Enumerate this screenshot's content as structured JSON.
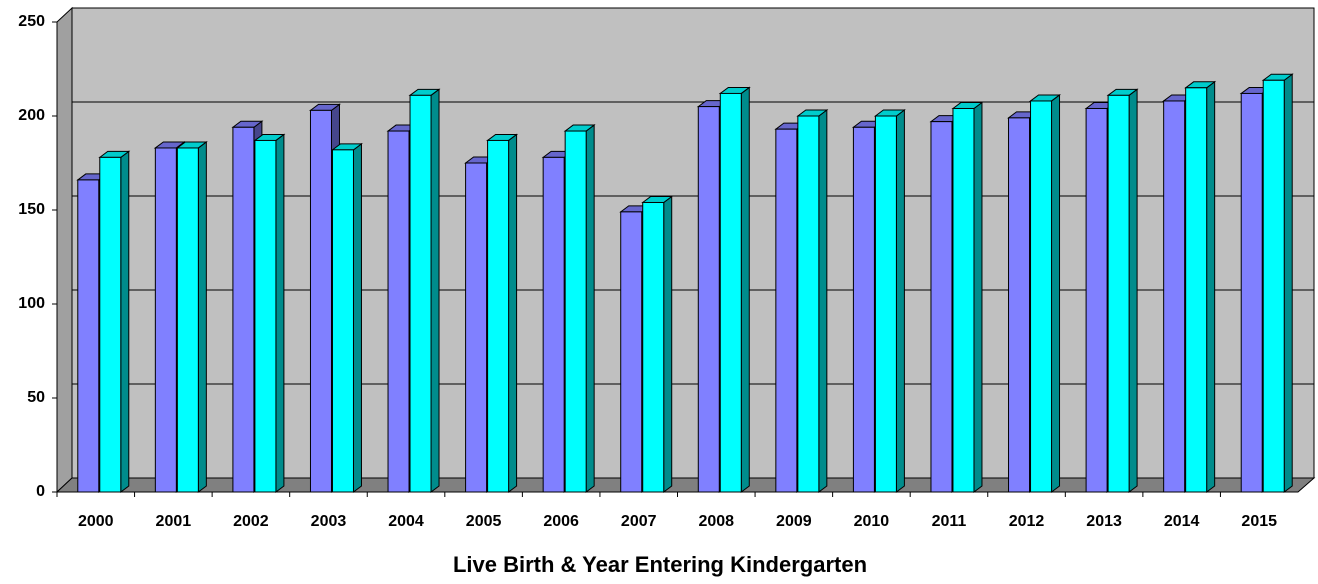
{
  "chart_data": {
    "type": "bar3d",
    "x_label": "Live Birth & Year Entering Kindergarten",
    "categories": [
      "2000",
      "2001",
      "2002",
      "2003",
      "2004",
      "2005",
      "2006",
      "2007",
      "2008",
      "2009",
      "2010",
      "2011",
      "2012",
      "2013",
      "2014",
      "2015"
    ],
    "series": [
      {
        "color": "#8080ff",
        "values": [
          166,
          183,
          194,
          203,
          192,
          175,
          178,
          149,
          205,
          193,
          194,
          197,
          199,
          204,
          208,
          212
        ]
      },
      {
        "color": "#00ffff",
        "values": [
          178,
          183,
          187,
          182,
          211,
          187,
          192,
          154,
          212,
          200,
          200,
          204,
          208,
          211,
          215,
          219
        ]
      }
    ],
    "ylim": [
      0,
      250
    ],
    "yticks": [
      0,
      50,
      100,
      150,
      200,
      250
    ],
    "grid": true
  }
}
